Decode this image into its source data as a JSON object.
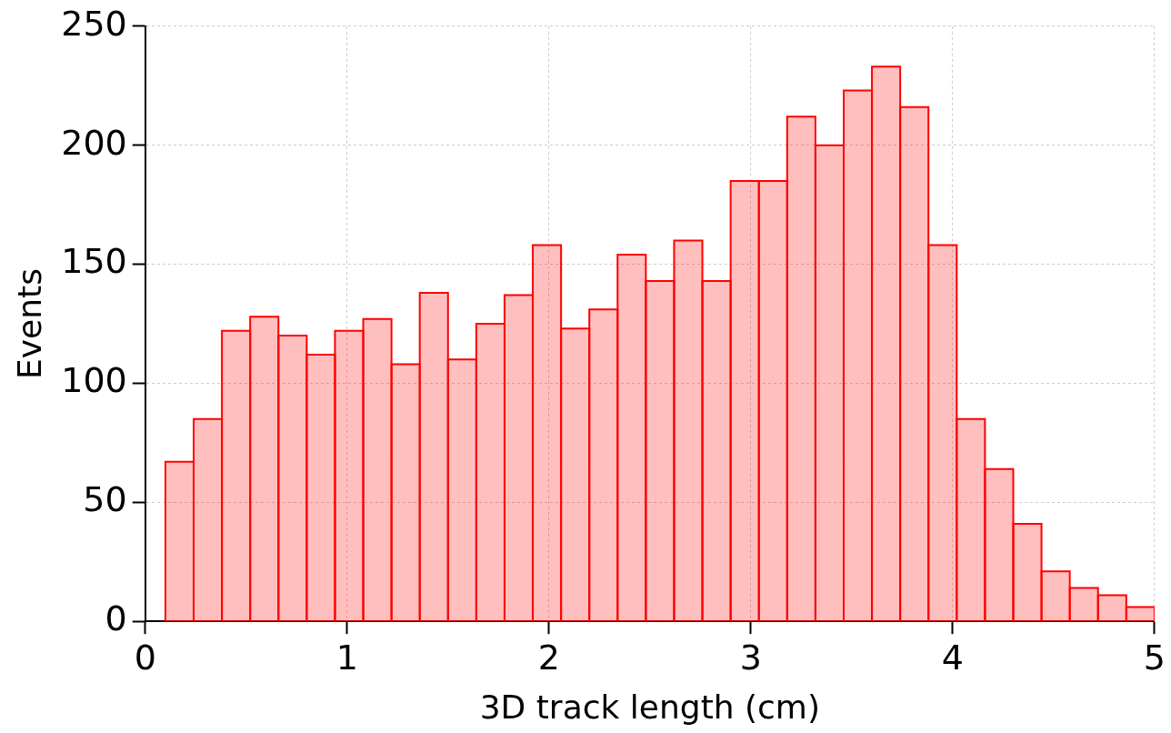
{
  "chart_data": {
    "type": "histogram",
    "xlabel": "3D track length (cm)",
    "ylabel": "Events",
    "bins": [
      0.1,
      0.24,
      0.38,
      0.52,
      0.66,
      0.8,
      0.94,
      1.08,
      1.22,
      1.36,
      1.5,
      1.64,
      1.78,
      1.92,
      2.06,
      2.2,
      2.34,
      2.48,
      2.62,
      2.76,
      2.9,
      3.04,
      3.18,
      3.32,
      3.46,
      3.6,
      3.74,
      3.88,
      4.02,
      4.16,
      4.3,
      4.44,
      4.58,
      4.72,
      4.86,
      5.0
    ],
    "values": [
      67,
      85,
      122,
      128,
      120,
      112,
      122,
      127,
      108,
      138,
      110,
      125,
      137,
      158,
      123,
      131,
      154,
      143,
      160,
      143,
      185,
      185,
      212,
      200,
      223,
      233,
      216,
      158,
      85,
      64,
      41,
      21,
      14,
      11,
      6
    ],
    "color": "#ff0000",
    "xlim": [
      0,
      5
    ],
    "xticks": [
      0,
      1,
      2,
      3,
      4,
      5
    ],
    "ylim": [
      0,
      250
    ],
    "yticks": [
      0,
      50,
      100,
      150,
      200,
      250
    ],
    "grid": true,
    "legend": false
  }
}
